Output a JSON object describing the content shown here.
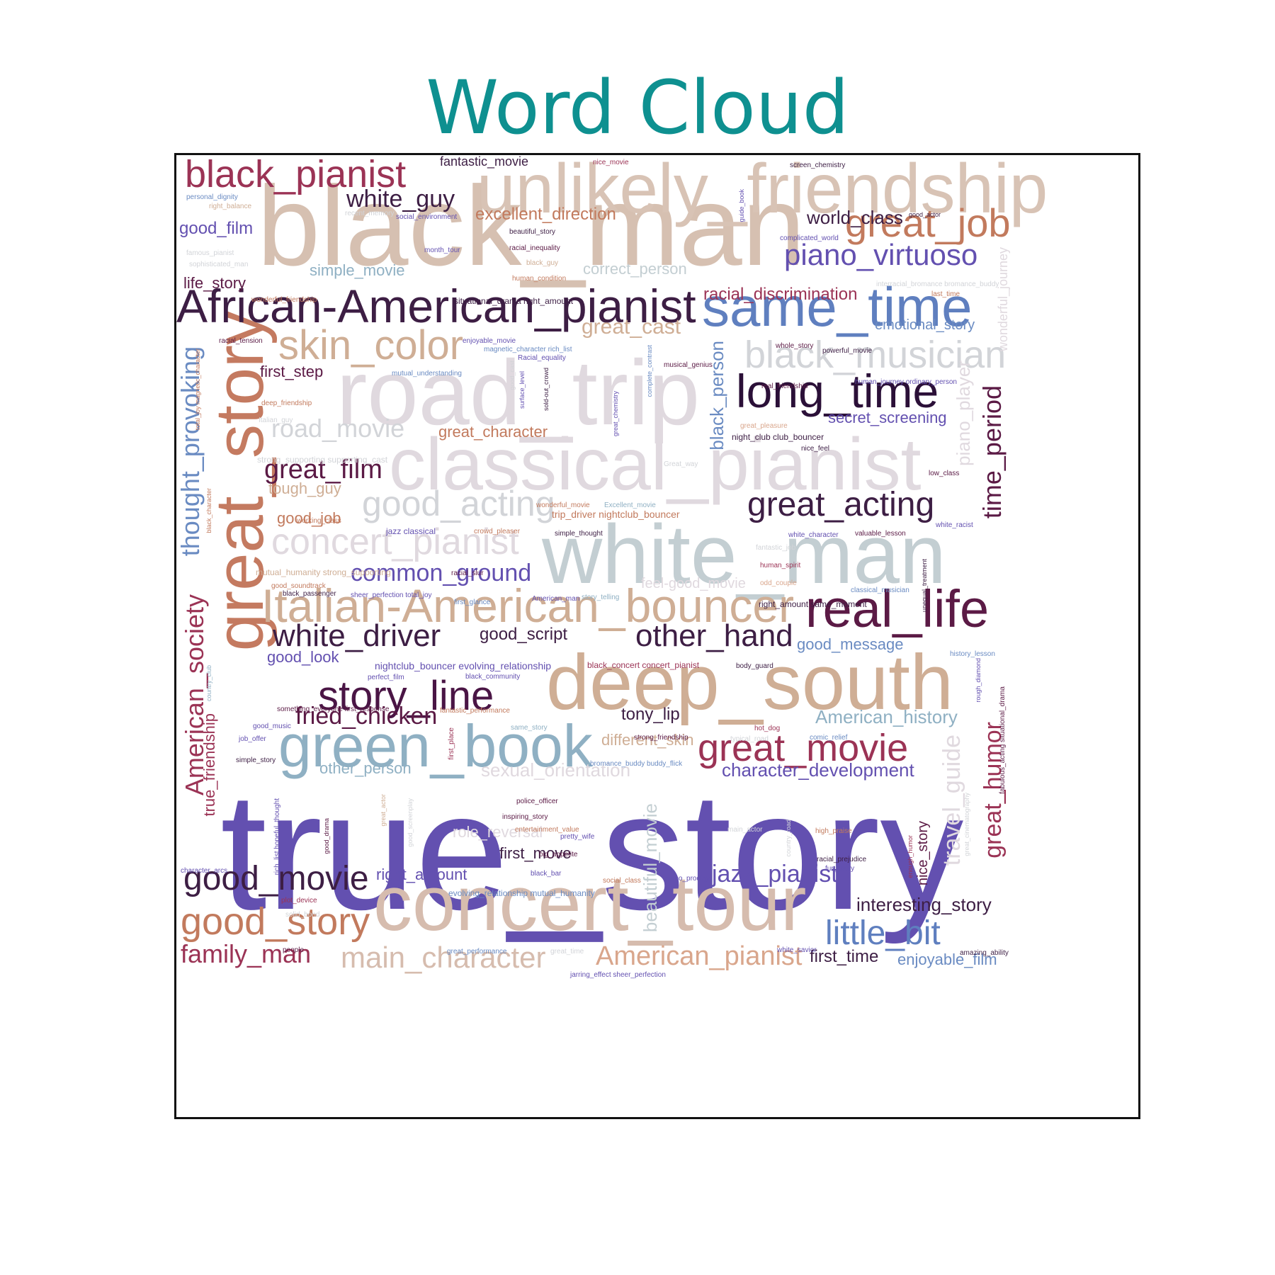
{
  "title": "Word Cloud",
  "colors": {
    "title": "#0e9090",
    "frame": "#111111",
    "background": "#ffffff",
    "palette": [
      "#6350b0",
      "#d6bcae",
      "#cbaa95",
      "#e0d9df",
      "#c3ced2",
      "#8fb0c3",
      "#5f7fbf",
      "#3d1e44",
      "#5b1a45",
      "#9b3355",
      "#c27a5d",
      "#6d5bb8",
      "#d2d4d8"
    ]
  },
  "words": [
    {
      "text": "true_story",
      "color": "#6350b0"
    },
    {
      "text": "black_man",
      "color": "#d6c0b1"
    },
    {
      "text": "unlikely_friendship",
      "color": "#d8c3b5"
    },
    {
      "text": "road_trip",
      "color": "#e0d9df"
    },
    {
      "text": "white_man",
      "color": "#c3ced2"
    },
    {
      "text": "classical_pianist",
      "color": "#e0d9df"
    },
    {
      "text": "deep_south",
      "color": "#cfae95"
    },
    {
      "text": "concert_tour",
      "color": "#d6bcae"
    },
    {
      "text": "great_story",
      "color": "#c47a60"
    },
    {
      "text": "green_book",
      "color": "#8fb0c3"
    },
    {
      "text": "African-American_pianist",
      "color": "#3d1e44"
    },
    {
      "text": "same_time",
      "color": "#5f7fbf"
    },
    {
      "text": "Italian-American_bouncer",
      "color": "#cfae95"
    },
    {
      "text": "real_life",
      "color": "#5b1a45"
    },
    {
      "text": "long_time",
      "color": "#2b1038"
    },
    {
      "text": "black_pianist",
      "color": "#9b3355"
    },
    {
      "text": "skin_color",
      "color": "#cfae95"
    },
    {
      "text": "story_line",
      "color": "#4a1545"
    },
    {
      "text": "great_movie",
      "color": "#9b3355"
    },
    {
      "text": "black_musician",
      "color": "#d2d4d8"
    },
    {
      "text": "great_job",
      "color": "#c27a5d"
    },
    {
      "text": "good_story",
      "color": "#c27a5d"
    },
    {
      "text": "good_movie",
      "color": "#3d1e44"
    },
    {
      "text": "concert_pianist",
      "color": "#e0d9df"
    },
    {
      "text": "good_acting",
      "color": "#d2d4d8"
    },
    {
      "text": "great_acting",
      "color": "#3d1e44"
    },
    {
      "text": "white_driver",
      "color": "#3d1e44"
    },
    {
      "text": "other_hand",
      "color": "#3d1e44"
    },
    {
      "text": "main_character",
      "color": "#d6bcae"
    },
    {
      "text": "American_pianist",
      "color": "#d9a68c"
    },
    {
      "text": "little_bit",
      "color": "#5f7fbf"
    },
    {
      "text": "piano_virtuoso",
      "color": "#6350b0"
    },
    {
      "text": "road_movie",
      "color": "#d2d4d8"
    },
    {
      "text": "great_film",
      "color": "#5b1a45"
    },
    {
      "text": "thought_provoking",
      "color": "#6a8bc2"
    },
    {
      "text": "American_society",
      "color": "#9b3355"
    },
    {
      "text": "time_period",
      "color": "#5b1a45"
    },
    {
      "text": "fried_chicken",
      "color": "#5b1a45"
    },
    {
      "text": "common_ground",
      "color": "#6350b0"
    },
    {
      "text": "family_man",
      "color": "#9b3355"
    },
    {
      "text": "white_guy",
      "color": "#3d1e44"
    },
    {
      "text": "great_humor",
      "color": "#9b3355"
    },
    {
      "text": "jazz_pianist",
      "color": "#6350b0"
    },
    {
      "text": "travel_guide",
      "color": "#e0d9df"
    },
    {
      "text": "beautiful_movie",
      "color": "#c3ced2"
    },
    {
      "text": "excellent_direction",
      "color": "#c27a5d"
    },
    {
      "text": "great_cast",
      "color": "#cfae95"
    },
    {
      "text": "black_person",
      "color": "#6a8bc2"
    },
    {
      "text": "piano_player",
      "color": "#e0d9df"
    },
    {
      "text": "world_class",
      "color": "#3d1e44"
    },
    {
      "text": "interesting_story",
      "color": "#3d1e44"
    },
    {
      "text": "character_development",
      "color": "#6350b0"
    },
    {
      "text": "American_history",
      "color": "#8fb0c3"
    },
    {
      "text": "racial_discrimination",
      "color": "#9b3355"
    },
    {
      "text": "sexual_orientation",
      "color": "#e0d9df"
    },
    {
      "text": "different_skin",
      "color": "#cfae95"
    },
    {
      "text": "good_script",
      "color": "#3d1e44"
    },
    {
      "text": "tony_lip",
      "color": "#3d1e44"
    },
    {
      "text": "great_character",
      "color": "#c27a5d"
    },
    {
      "text": "first_step",
      "color": "#5b1a45"
    },
    {
      "text": "good_film",
      "color": "#6350b0"
    },
    {
      "text": "tough_guy",
      "color": "#cfae95"
    },
    {
      "text": "good_job",
      "color": "#c27a5d"
    },
    {
      "text": "good_look",
      "color": "#6350b0"
    },
    {
      "text": "life_story",
      "color": "#5b1a45"
    },
    {
      "text": "simple_movie",
      "color": "#8fb0c3"
    },
    {
      "text": "correct_person",
      "color": "#c3ced2"
    },
    {
      "text": "emotional_story",
      "color": "#6a8bc2"
    },
    {
      "text": "secret_screening",
      "color": "#6350b0"
    },
    {
      "text": "role_reversal",
      "color": "#e0d9df"
    },
    {
      "text": "first_move",
      "color": "#3d1e44"
    },
    {
      "text": "right_amount",
      "color": "#6350b0"
    },
    {
      "text": "other_person",
      "color": "#8fb0c3"
    },
    {
      "text": "good_message",
      "color": "#6a8bc2"
    },
    {
      "text": "first_time",
      "color": "#3d1e44"
    },
    {
      "text": "enjoyable_film",
      "color": "#6a8bc2"
    },
    {
      "text": "feel-good_movie",
      "color": "#e0d9df"
    },
    {
      "text": "true_friendship",
      "color": "#9b3355"
    },
    {
      "text": "nice_story",
      "color": "#5b1a45"
    },
    {
      "text": "wonderful_journey",
      "color": "#e0d9df"
    },
    {
      "text": "fantastic_movie",
      "color": "#3d1e44"
    },
    {
      "text": "nice_movie",
      "color": "#9b3355"
    },
    {
      "text": "screen_chemistry",
      "color": "#3d1e44"
    },
    {
      "text": "guide_book",
      "color": "#6350b0"
    },
    {
      "text": "good_actor",
      "color": "#3d1e44"
    },
    {
      "text": "personal_dignity",
      "color": "#6a8bc2"
    },
    {
      "text": "right_balance",
      "color": "#cfae95"
    },
    {
      "text": "recent_memory",
      "color": "#d2d4d8"
    },
    {
      "text": "social_environment",
      "color": "#6350b0"
    },
    {
      "text": "beautiful_story",
      "color": "#3d1e44"
    },
    {
      "text": "complicated_world",
      "color": "#6350b0"
    },
    {
      "text": "month_tour",
      "color": "#6350b0"
    },
    {
      "text": "racial_inequality",
      "color": "#5b1a45"
    },
    {
      "text": "famous_pianist",
      "color": "#d2d4d8"
    },
    {
      "text": "sophisticated_man",
      "color": "#d2d4d8"
    },
    {
      "text": "black_guy",
      "color": "#cfae95"
    },
    {
      "text": "human_condition",
      "color": "#c27a5d"
    },
    {
      "text": "wonderful_friendship",
      "color": "#c27a5d"
    },
    {
      "text": "situational_drama right_amount",
      "color": "#3d1e44"
    },
    {
      "text": "interracial_bromance bromance_buddy",
      "color": "#d2d4d8"
    },
    {
      "text": "last_time",
      "color": "#c27a5d"
    },
    {
      "text": "racial_tension",
      "color": "#5b1a45"
    },
    {
      "text": "enjoyable_movie",
      "color": "#6350b0"
    },
    {
      "text": "magnetic_character rich_list",
      "color": "#6a8bc2"
    },
    {
      "text": "Racial_equality",
      "color": "#6350b0"
    },
    {
      "text": "whole_story",
      "color": "#5b1a45"
    },
    {
      "text": "powerful_movie",
      "color": "#3d1e44"
    },
    {
      "text": "musical_genius",
      "color": "#5b1a45"
    },
    {
      "text": "mutual_understanding",
      "color": "#6a8bc2"
    },
    {
      "text": "human_journey ordinary_person",
      "color": "#6350b0"
    },
    {
      "text": "real_friendship",
      "color": "#5b1a45"
    },
    {
      "text": "deep_friendship",
      "color": "#c27a5d"
    },
    {
      "text": "Italian_guy",
      "color": "#d2d4d8"
    },
    {
      "text": "great_pleasure",
      "color": "#d9a68c"
    },
    {
      "text": "night_club club_bouncer",
      "color": "#3d1e44"
    },
    {
      "text": "strong_supporting supporting_cast",
      "color": "#d2d4d8"
    },
    {
      "text": "nice_feel",
      "color": "#3d1e44"
    },
    {
      "text": "Great_way",
      "color": "#d2d4d8"
    },
    {
      "text": "low_class",
      "color": "#5b1a45"
    },
    {
      "text": "wonderful_movie",
      "color": "#c27a5d"
    },
    {
      "text": "Excellent_movie",
      "color": "#8fb0c3"
    },
    {
      "text": "trip_driver nightclub_bouncer",
      "color": "#c27a5d"
    },
    {
      "text": "working_class",
      "color": "#c27a5d"
    },
    {
      "text": "jazz classical",
      "color": "#6350b0"
    },
    {
      "text": "crowd_pleaser",
      "color": "#c27a5d"
    },
    {
      "text": "simple_thought",
      "color": "#3d1e44"
    },
    {
      "text": "white_character",
      "color": "#6350b0"
    },
    {
      "text": "valuable_lesson",
      "color": "#5b1a45"
    },
    {
      "text": "white_racist",
      "color": "#6350b0"
    },
    {
      "text": "fantastic_job",
      "color": "#d2d4d8"
    },
    {
      "text": "human_spirit",
      "color": "#9b3355"
    },
    {
      "text": "mutual_humanity strong_supporting",
      "color": "#cfae95"
    },
    {
      "text": "racial_slur",
      "color": "#5b1a45"
    },
    {
      "text": "odd_couple",
      "color": "#d9a68c"
    },
    {
      "text": "good_soundtrack",
      "color": "#c27a5d"
    },
    {
      "text": "black_passenger",
      "color": "#3d1e44"
    },
    {
      "text": "sheer_perfection total_joy",
      "color": "#6350b0"
    },
    {
      "text": "first_glance",
      "color": "#6a8bc2"
    },
    {
      "text": "American_man",
      "color": "#6350b0"
    },
    {
      "text": "story_telling",
      "color": "#8fb0c3"
    },
    {
      "text": "classical_musician",
      "color": "#6a8bc2"
    },
    {
      "text": "right_amount same_moment",
      "color": "#3d1e44"
    },
    {
      "text": "unequal_treatment",
      "color": "#3d1e44"
    },
    {
      "text": "history_lesson",
      "color": "#6a8bc2"
    },
    {
      "text": "nightclub_bouncer evolving_relationship",
      "color": "#6350b0"
    },
    {
      "text": "black_concert concert_pianist",
      "color": "#9b3355"
    },
    {
      "text": "body_guard",
      "color": "#3d1e44"
    },
    {
      "text": "perfect_film",
      "color": "#6350b0"
    },
    {
      "text": "black_community",
      "color": "#6350b0"
    },
    {
      "text": "country_club",
      "color": "#8fb0c3"
    },
    {
      "text": "rough_diamond",
      "color": "#6350b0"
    },
    {
      "text": "something_everyone first_response",
      "color": "#5b1a45"
    },
    {
      "text": "fantastic_performance",
      "color": "#c27a5d"
    },
    {
      "text": "good_music",
      "color": "#6350b0"
    },
    {
      "text": "same_story",
      "color": "#8fb0c3"
    },
    {
      "text": "hot_dog",
      "color": "#9b3355"
    },
    {
      "text": "strong_friendship",
      "color": "#5b1a45"
    },
    {
      "text": "typical_road",
      "color": "#d2d4d8"
    },
    {
      "text": "comic_relief",
      "color": "#6a8bc2"
    },
    {
      "text": "job_offer",
      "color": "#6350b0"
    },
    {
      "text": "first_place",
      "color": "#9b3355"
    },
    {
      "text": "bromance_buddy buddy_flick",
      "color": "#6a8bc2"
    },
    {
      "text": "simple_story",
      "color": "#3d1e44"
    },
    {
      "text": "fabulous_acting situational_drama",
      "color": "#5b1a45"
    },
    {
      "text": "police_officer",
      "color": "#5b1a45"
    },
    {
      "text": "inspiring_story",
      "color": "#5b1a45"
    },
    {
      "text": "rich_list hopeful_thought",
      "color": "#6350b0"
    },
    {
      "text": "good_drama",
      "color": "#5b1a45"
    },
    {
      "text": "great_actor",
      "color": "#cfae95"
    },
    {
      "text": "good_screenplay",
      "color": "#d2d4d8"
    },
    {
      "text": "entertainment_value",
      "color": "#c27a5d"
    },
    {
      "text": "pretty_wife",
      "color": "#6350b0"
    },
    {
      "text": "main_actor",
      "color": "#d2d4d8"
    },
    {
      "text": "country_road",
      "color": "#d2d4d8"
    },
    {
      "text": "great_cinematography",
      "color": "#d2d4d8"
    },
    {
      "text": "high_praise",
      "color": "#c27a5d"
    },
    {
      "text": "big_appetite",
      "color": "#5b1a45"
    },
    {
      "text": "racial_prejudice",
      "color": "#3d1e44"
    },
    {
      "text": "fun_story",
      "color": "#6350b0"
    },
    {
      "text": "enough_humor",
      "color": "#9b3355"
    },
    {
      "text": "character_arcs",
      "color": "#6350b0"
    },
    {
      "text": "black_bar",
      "color": "#6350b0"
    },
    {
      "text": "social_class",
      "color": "#c27a5d"
    },
    {
      "text": "piano_prodigy",
      "color": "#6350b0"
    },
    {
      "text": "evolving_relationship mutual_humanity",
      "color": "#6a8bc2"
    },
    {
      "text": "plot_device",
      "color": "#9b3355"
    },
    {
      "text": "solid_bond",
      "color": "#d2d4d8"
    },
    {
      "text": "people",
      "color": "#5b1a45"
    },
    {
      "text": "great_performance",
      "color": "#6a8bc2"
    },
    {
      "text": "great_time",
      "color": "#d2d4d8"
    },
    {
      "text": "white_savior",
      "color": "#6350b0"
    },
    {
      "text": "amazing_ability",
      "color": "#3d1e44"
    },
    {
      "text": "jarring_effect sheer_perfection",
      "color": "#6350b0"
    },
    {
      "text": "surface_level",
      "color": "#6350b0"
    },
    {
      "text": "sold-out_crowd",
      "color": "#3d1e44"
    },
    {
      "text": "good_cast",
      "color": "#d2d4d8"
    },
    {
      "text": "great_chemistry",
      "color": "#6350b0"
    },
    {
      "text": "complete_contrast",
      "color": "#6a8bc2"
    },
    {
      "text": "total_joy magnetic_character",
      "color": "#c27a5d"
    },
    {
      "text": "black_character",
      "color": "#c27a5d"
    }
  ]
}
